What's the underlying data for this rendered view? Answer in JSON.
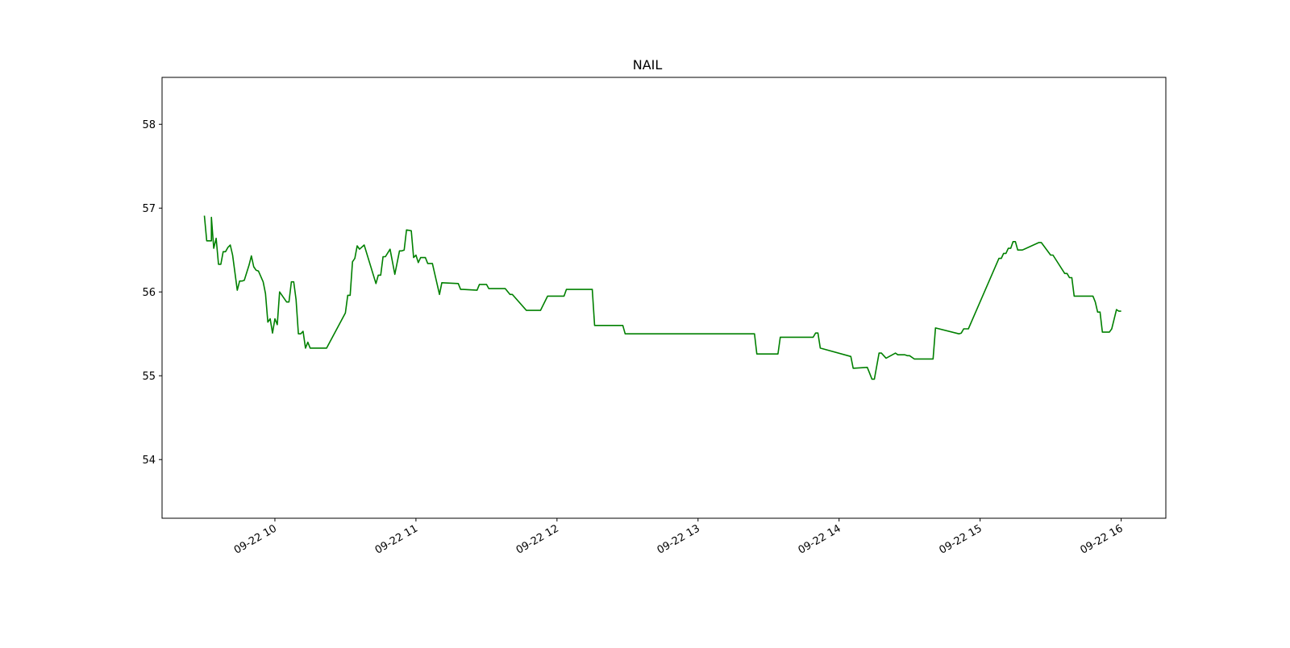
{
  "chart_data": {
    "type": "line",
    "title": "NAIL",
    "xlabel": "",
    "ylabel": "",
    "x_ticks": [
      "09-22 10",
      "09-22 11",
      "09-22 12",
      "09-22 13",
      "09-22 14",
      "09-22 15",
      "09-22 16"
    ],
    "y_ticks": [
      "54",
      "55",
      "56",
      "57",
      "58"
    ],
    "xlim": [
      "09-22 09:12",
      "09-22 16:19"
    ],
    "ylim": [
      53.3,
      58.56
    ],
    "grid": false,
    "legend": "none",
    "colors": {
      "line": "#008000",
      "axes": "#000000",
      "background": "#ffffff"
    },
    "series": [
      {
        "x": [
          "09:30",
          "09:31",
          "09:32",
          "09:33",
          "09:33",
          "09:34",
          "09:35",
          "09:36",
          "09:37",
          "09:38",
          "09:39",
          "09:40",
          "09:41",
          "09:42",
          "09:44",
          "09:45",
          "09:46",
          "09:47",
          "09:49",
          "09:50",
          "09:51",
          "09:52",
          "09:53",
          "09:55",
          "09:56",
          "09:57",
          "09:58",
          "09:59",
          "10:00",
          "10:01",
          "10:02",
          "10:05",
          "10:06",
          "10:07",
          "10:08",
          "10:09",
          "10:10",
          "10:11",
          "10:12",
          "10:13",
          "10:14",
          "10:15",
          "10:18",
          "10:19",
          "10:20",
          "10:22",
          "10:30",
          "10:31",
          "10:32",
          "10:33",
          "10:34",
          "10:35",
          "10:36",
          "10:38",
          "10:43",
          "10:44",
          "10:45",
          "10:46",
          "10:47",
          "10:49",
          "10:51",
          "10:53",
          "10:54",
          "10:55",
          "10:56",
          "10:58",
          "10:59",
          "11:00",
          "11:01",
          "11:02",
          "11:03",
          "11:04",
          "11:05",
          "11:07",
          "11:10",
          "11:11",
          "11:18",
          "11:19",
          "11:20",
          "11:26",
          "11:27",
          "11:30",
          "11:31",
          "11:38",
          "11:40",
          "11:41",
          "11:47",
          "11:48",
          "11:53",
          "11:56",
          "12:03",
          "12:04",
          "12:15",
          "12:16",
          "12:28",
          "12:29",
          "13:24",
          "13:25",
          "13:34",
          "13:35",
          "13:49",
          "13:50",
          "13:51",
          "13:52",
          "14:05",
          "14:06",
          "14:12",
          "14:13",
          "14:14",
          "14:15",
          "14:17",
          "14:18",
          "14:20",
          "14:24",
          "14:25",
          "14:28",
          "14:29",
          "14:30",
          "14:32",
          "14:40",
          "14:41",
          "14:51",
          "14:52",
          "14:53",
          "14:55",
          "15:08",
          "15:09",
          "15:10",
          "15:11",
          "15:12",
          "15:13",
          "15:14",
          "15:15",
          "15:16",
          "15:18",
          "15:25",
          "15:26",
          "15:30",
          "15:31",
          "15:36",
          "15:37",
          "15:38",
          "15:39",
          "15:40",
          "15:48",
          "15:49",
          "15:50",
          "15:51",
          "15:52",
          "15:55",
          "15:56",
          "15:58",
          "15:59",
          "16:00"
        ],
        "values": [
          56.91,
          56.61,
          56.61,
          56.61,
          56.89,
          56.52,
          56.64,
          56.33,
          56.33,
          56.48,
          56.48,
          56.53,
          56.56,
          56.44,
          56.02,
          56.13,
          56.13,
          56.14,
          56.32,
          56.43,
          56.3,
          56.26,
          56.25,
          56.12,
          55.98,
          55.64,
          55.68,
          55.51,
          55.68,
          55.61,
          56.0,
          55.88,
          55.88,
          56.12,
          56.12,
          55.91,
          55.5,
          55.5,
          55.53,
          55.33,
          55.4,
          55.33,
          55.33,
          55.33,
          55.33,
          55.33,
          55.75,
          55.96,
          55.96,
          56.36,
          56.4,
          56.55,
          56.51,
          56.56,
          56.1,
          56.2,
          56.2,
          56.42,
          56.42,
          56.51,
          56.21,
          56.49,
          56.49,
          56.5,
          56.74,
          56.73,
          56.41,
          56.44,
          56.35,
          56.41,
          56.41,
          56.41,
          56.34,
          56.34,
          55.97,
          56.11,
          56.1,
          56.03,
          56.03,
          56.02,
          56.09,
          56.09,
          56.04,
          56.04,
          55.97,
          55.97,
          55.78,
          55.78,
          55.78,
          55.95,
          55.95,
          56.03,
          56.03,
          55.6,
          55.6,
          55.5,
          55.5,
          55.26,
          55.26,
          55.46,
          55.46,
          55.51,
          55.51,
          55.33,
          55.23,
          55.09,
          55.1,
          55.03,
          54.96,
          54.96,
          55.27,
          55.27,
          55.21,
          55.27,
          55.25,
          55.25,
          55.24,
          55.24,
          55.2,
          55.2,
          55.57,
          55.5,
          55.51,
          55.56,
          55.56,
          56.4,
          56.4,
          56.46,
          56.46,
          56.52,
          56.52,
          56.6,
          56.6,
          56.5,
          56.5,
          56.59,
          56.59,
          56.44,
          56.44,
          56.22,
          56.22,
          56.17,
          56.17,
          55.95,
          55.95,
          55.88,
          55.76,
          55.76,
          55.52,
          55.52,
          55.56,
          55.79,
          55.77,
          55.77
        ]
      }
    ]
  }
}
